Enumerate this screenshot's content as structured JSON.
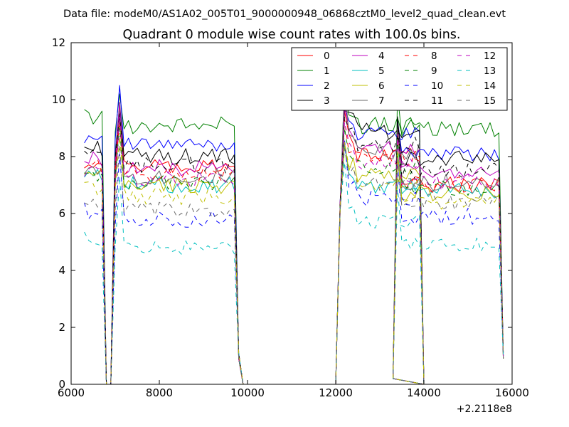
{
  "figure": {
    "suptitle": "Data file: modeM0/AS1A02_005T01_9000000948_06868cztM0_level2_quad_clean.evt",
    "offset_label": "+2.2118e8"
  },
  "chart_data": {
    "type": "line",
    "title": "Quadrant 0 module wise count rates with 100.0s bins.",
    "xlabel": "",
    "ylabel": "",
    "xlim": [
      6000,
      16000
    ],
    "ylim": [
      0,
      12
    ],
    "x_offset": 221180000,
    "xticks": [
      6000,
      8000,
      10000,
      12000,
      14000,
      16000
    ],
    "xtick_labels": [
      "6000",
      "8000",
      "10000",
      "12000",
      "14000",
      "16000"
    ],
    "yticks": [
      0,
      2,
      4,
      6,
      8,
      10,
      12
    ],
    "ytick_labels": [
      "0",
      "2",
      "4",
      "6",
      "8",
      "10",
      "12"
    ],
    "legend_position": "top-right",
    "segments": [
      {
        "start": 6300,
        "count": 36
      },
      {
        "start": 12000,
        "count": 21
      },
      {
        "start": 13300,
        "count": 26
      }
    ],
    "series": [
      {
        "name": "0",
        "color": "#ff0000",
        "dash": false,
        "seg_levels": [
          7.6,
          8.1,
          7.0
        ],
        "peaks": [
          9.8,
          9.6,
          9.2
        ],
        "amp": 0.3
      },
      {
        "name": "1",
        "color": "#008000",
        "dash": false,
        "seg_levels": [
          9.1,
          9.1,
          9.0
        ],
        "peaks": [
          10.2,
          10.6,
          10.2
        ],
        "amp": 0.3
      },
      {
        "name": "2",
        "color": "#0000ff",
        "dash": false,
        "seg_levels": [
          8.4,
          8.8,
          8.1
        ],
        "peaks": [
          10.5,
          9.7,
          9.3
        ],
        "amp": 0.25
      },
      {
        "name": "3",
        "color": "#000000",
        "dash": false,
        "seg_levels": [
          8.0,
          8.9,
          7.9
        ],
        "peaks": [
          9.9,
          9.6,
          9.4
        ],
        "amp": 0.3
      },
      {
        "name": "4",
        "color": "#bf00bf",
        "dash": false,
        "seg_levels": [
          7.6,
          8.3,
          7.5
        ],
        "peaks": [
          9.9,
          9.8,
          9.0
        ],
        "amp": 0.3
      },
      {
        "name": "5",
        "color": "#00bfbf",
        "dash": false,
        "seg_levels": [
          7.0,
          7.0,
          6.8
        ],
        "peaks": [
          9.5,
          8.4,
          8.3
        ],
        "amp": 0.3
      },
      {
        "name": "6",
        "color": "#bfbf00",
        "dash": false,
        "seg_levels": [
          7.0,
          7.3,
          6.7
        ],
        "peaks": [
          9.4,
          8.5,
          8.2
        ],
        "amp": 0.3
      },
      {
        "name": "7",
        "color": "#6a6a6a",
        "dash": false,
        "seg_levels": [
          7.3,
          8.2,
          7.1
        ],
        "peaks": [
          9.6,
          10.6,
          9.1
        ],
        "amp": 0.3
      },
      {
        "name": "8",
        "color": "#ff0000",
        "dash": true,
        "seg_levels": [
          7.4,
          7.9,
          7.0
        ],
        "peaks": [
          9.2,
          9.3,
          8.8
        ],
        "amp": 0.3
      },
      {
        "name": "9",
        "color": "#008000",
        "dash": true,
        "seg_levels": [
          7.1,
          7.6,
          6.9
        ],
        "peaks": [
          9.0,
          9.0,
          8.6
        ],
        "amp": 0.3
      },
      {
        "name": "10",
        "color": "#0000ff",
        "dash": true,
        "seg_levels": [
          5.8,
          6.5,
          5.9
        ],
        "peaks": [
          8.1,
          8.6,
          7.8
        ],
        "amp": 0.3
      },
      {
        "name": "11",
        "color": "#000000",
        "dash": true,
        "seg_levels": [
          7.7,
          8.4,
          7.5
        ],
        "peaks": [
          9.5,
          9.4,
          9.1
        ],
        "amp": 0.3
      },
      {
        "name": "12",
        "color": "#bf00bf",
        "dash": true,
        "seg_levels": [
          7.2,
          7.8,
          7.1
        ],
        "peaks": [
          9.4,
          9.2,
          8.8
        ],
        "amp": 0.3
      },
      {
        "name": "13",
        "color": "#00bfbf",
        "dash": true,
        "seg_levels": [
          4.8,
          5.7,
          4.9
        ],
        "peaks": [
          7.3,
          7.8,
          7.0
        ],
        "amp": 0.25
      },
      {
        "name": "14",
        "color": "#bfbf00",
        "dash": true,
        "seg_levels": [
          6.6,
          7.1,
          6.4
        ],
        "peaks": [
          8.7,
          8.5,
          8.2
        ],
        "amp": 0.3
      },
      {
        "name": "15",
        "color": "#6a6a6a",
        "dash": true,
        "seg_levels": [
          6.1,
          7.1,
          6.4
        ],
        "peaks": [
          8.4,
          8.3,
          7.9
        ],
        "amp": 0.3
      }
    ]
  }
}
